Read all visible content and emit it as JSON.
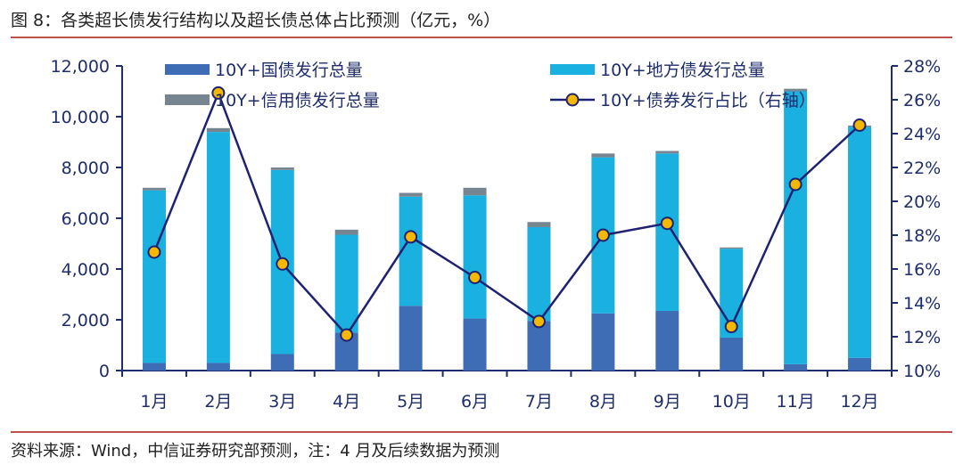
{
  "title": "图 8：各类超长债发行结构以及超长债总体占比预测（亿元，%）",
  "source": "资料来源：Wind，中信证券研究部预测，注：4 月及后续数据为预测",
  "colors": {
    "national": "#3e6db5",
    "local": "#1ab0e0",
    "credit": "#778590",
    "line": "#1f2270",
    "marker_fill": "#f5b800",
    "axis": "#1f2d6b",
    "rule": "#c0504d"
  },
  "chart_data": {
    "type": "bar",
    "stacked": true,
    "categories": [
      "1月",
      "2月",
      "3月",
      "4月",
      "5月",
      "6月",
      "7月",
      "8月",
      "9月",
      "10月",
      "11月",
      "12月"
    ],
    "series": [
      {
        "name": "10Y+国债发行总量",
        "type": "bar",
        "axis": "left",
        "values": [
          300,
          300,
          650,
          1500,
          2550,
          2050,
          1950,
          2250,
          2350,
          1300,
          250,
          500
        ]
      },
      {
        "name": "10Y+地方债发行总量",
        "type": "bar",
        "axis": "left",
        "values": [
          6800,
          9100,
          7250,
          3850,
          4300,
          4850,
          3700,
          6150,
          6200,
          3500,
          10750,
          9100
        ]
      },
      {
        "name": "10Y+信用债发行总量",
        "type": "bar",
        "axis": "left",
        "values": [
          100,
          150,
          100,
          200,
          150,
          300,
          200,
          150,
          100,
          50,
          100,
          50
        ]
      },
      {
        "name": "10Y+债券发行占比（右轴）",
        "type": "line",
        "axis": "right",
        "values": [
          17.0,
          26.4,
          16.3,
          12.1,
          17.9,
          15.5,
          12.9,
          18.0,
          18.7,
          12.6,
          21.0,
          24.5
        ]
      }
    ],
    "ylim_left": [
      0,
      12000
    ],
    "yticks_left": [
      "0",
      "2,000",
      "4,000",
      "6,000",
      "8,000",
      "10,000",
      "12,000"
    ],
    "ylim_right": [
      10,
      28
    ],
    "yticks_right": [
      "10%",
      "12%",
      "14%",
      "16%",
      "18%",
      "20%",
      "22%",
      "24%",
      "26%",
      "28%"
    ],
    "legend": [
      {
        "label": "10Y+国债发行总量",
        "kind": "bar",
        "series": 0
      },
      {
        "label": "10Y+地方债发行总量",
        "kind": "bar",
        "series": 1
      },
      {
        "label": "10Y+信用债发行总量",
        "kind": "bar",
        "series": 2
      },
      {
        "label": "10Y+债券发行占比（右轴）",
        "kind": "line",
        "series": 3
      }
    ]
  }
}
